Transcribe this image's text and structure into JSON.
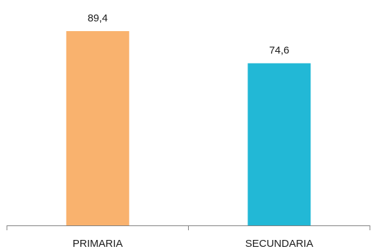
{
  "chart_data": {
    "type": "bar",
    "categories": [
      "PRIMARIA",
      "SECUNDARIA"
    ],
    "values": [
      89.4,
      74.6
    ],
    "value_labels": [
      "89,4",
      "74,6"
    ],
    "colors": [
      "#F9B26E",
      "#22B8D6"
    ],
    "title": "",
    "xlabel": "",
    "ylabel": "",
    "ylim": [
      0,
      100
    ],
    "grid": false,
    "legend": "none"
  }
}
